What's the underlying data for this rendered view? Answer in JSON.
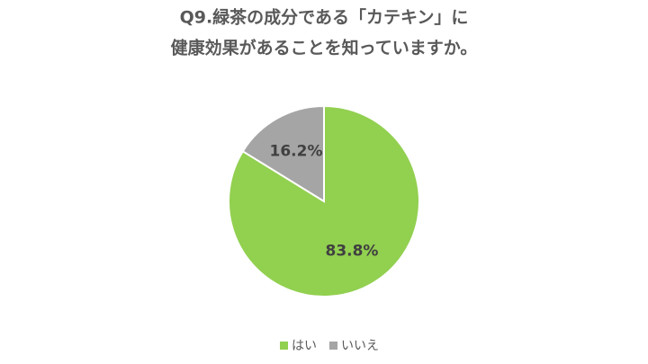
{
  "chart_data": {
    "type": "pie",
    "title": [
      "Q9.緑茶の成分である「カテキン」に",
      "健康効果があることを知っていますか。"
    ],
    "categories": [
      "はい",
      "いいえ"
    ],
    "values": [
      83.8,
      16.2
    ],
    "value_labels": [
      "83.8%",
      "16.2%"
    ],
    "colors": [
      "#92d050",
      "#a5a5a5"
    ],
    "legend": "bottom"
  }
}
